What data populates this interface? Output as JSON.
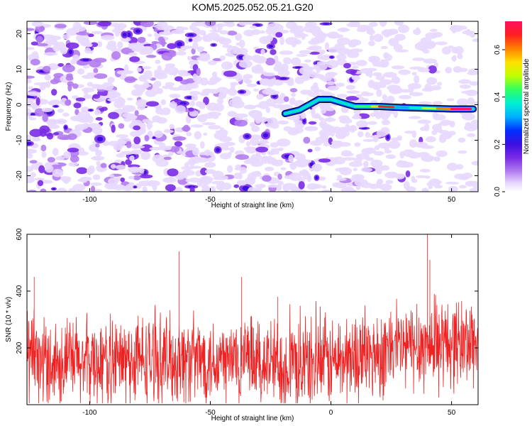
{
  "title": "KOM5.2025.052.05.21.G20",
  "chart_data": [
    {
      "type": "heatmap",
      "xlabel": "Height of straight line (km)",
      "ylabel": "Frequency (Hz)",
      "xlim": [
        -126,
        61
      ],
      "ylim": [
        -24.5,
        23.5
      ],
      "xticks": [
        -100,
        -50,
        0,
        50
      ],
      "yticks": [
        -20,
        -10,
        0,
        10,
        20
      ],
      "colorbar": {
        "label": "Normalized spectral amplitude",
        "range": [
          0.0,
          0.72
        ],
        "ticks": [
          "0.0",
          "0.2",
          "0.4",
          "0.6"
        ],
        "colors": [
          "#ffffff",
          "#e8d8ff",
          "#b27cf0",
          "#7a2be6",
          "#3a10e0",
          "#0030ff",
          "#00b0ff",
          "#00f0d0",
          "#30ff60",
          "#c0ff00",
          "#ffe000",
          "#ff8000",
          "#ff2020",
          "#ff1060"
        ]
      },
      "signal_track": {
        "description_points_km_hz": [
          [
            -19,
            -2.5
          ],
          [
            -13,
            -1.5
          ],
          [
            -9,
            0
          ],
          [
            -5,
            1.5
          ],
          [
            0,
            1.5
          ],
          [
            5,
            0.5
          ],
          [
            10,
            -0.5
          ],
          [
            20,
            -0.5
          ],
          [
            30,
            -0.8
          ],
          [
            40,
            -1.0
          ],
          [
            50,
            -1.2
          ],
          [
            59,
            -1.2
          ]
        ],
        "peak_km": 22,
        "peak_hz": -0.5
      }
    },
    {
      "type": "line",
      "xlabel": "Height of straight line (km)",
      "ylabel": "SNR (10 * v/v)",
      "xlim": [
        -126,
        61
      ],
      "ylim": [
        0,
        600
      ],
      "xticks": [
        -100,
        -50,
        0,
        50
      ],
      "yticks": [
        200,
        400,
        600
      ],
      "series": [
        {
          "color": "#ee2222",
          "baseline": [
            [
              -126,
              150
            ],
            [
              -100,
              150
            ],
            [
              -50,
              160
            ],
            [
              -10,
              140
            ],
            [
              10,
              165
            ],
            [
              30,
              200
            ],
            [
              45,
              215
            ],
            [
              61,
              220
            ]
          ],
          "spikes_km_snr": [
            [
              -123,
              450
            ],
            [
              -63,
              540
            ],
            [
              40,
              600
            ],
            [
              41,
              510
            ],
            [
              -22,
              380
            ],
            [
              -37,
              450
            ]
          ]
        }
      ]
    }
  ]
}
